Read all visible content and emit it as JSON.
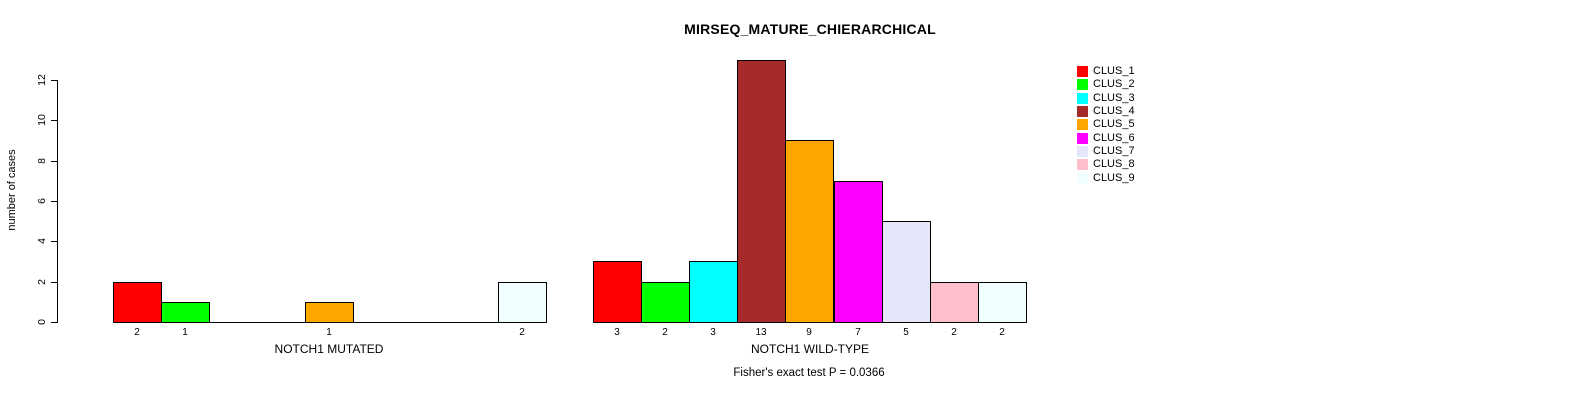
{
  "chart_data": {
    "type": "bar",
    "title": "MIRSEQ_MATURE_CHIERARCHICAL",
    "ylabel": "number of cases",
    "yticks": [
      0,
      2,
      4,
      6,
      8,
      10,
      12
    ],
    "ylim": [
      0,
      12
    ],
    "grid": false,
    "legend_position": "right",
    "bar_border_color": "#000000",
    "categories": [
      "CLUS_1",
      "CLUS_2",
      "CLUS_3",
      "CLUS_4",
      "CLUS_5",
      "CLUS_6",
      "CLUS_7",
      "CLUS_8",
      "CLUS_9"
    ],
    "colors": [
      "#FF0000",
      "#00FF00",
      "#00FFFF",
      "#A52A2A",
      "#FFA500",
      "#FF00FF",
      "#E6E6FA",
      "#FFC0CB",
      "#F0FFFF"
    ],
    "groups": [
      {
        "label": "NOTCH1 MUTATED",
        "values": [
          2,
          1,
          0,
          0,
          1,
          0,
          0,
          0,
          2
        ]
      },
      {
        "label": "NOTCH1 WILD-TYPE",
        "values": [
          3,
          2,
          3,
          13,
          9,
          7,
          5,
          2,
          2
        ]
      }
    ],
    "annotation": "Fisher's exact test P = 0.0366"
  }
}
